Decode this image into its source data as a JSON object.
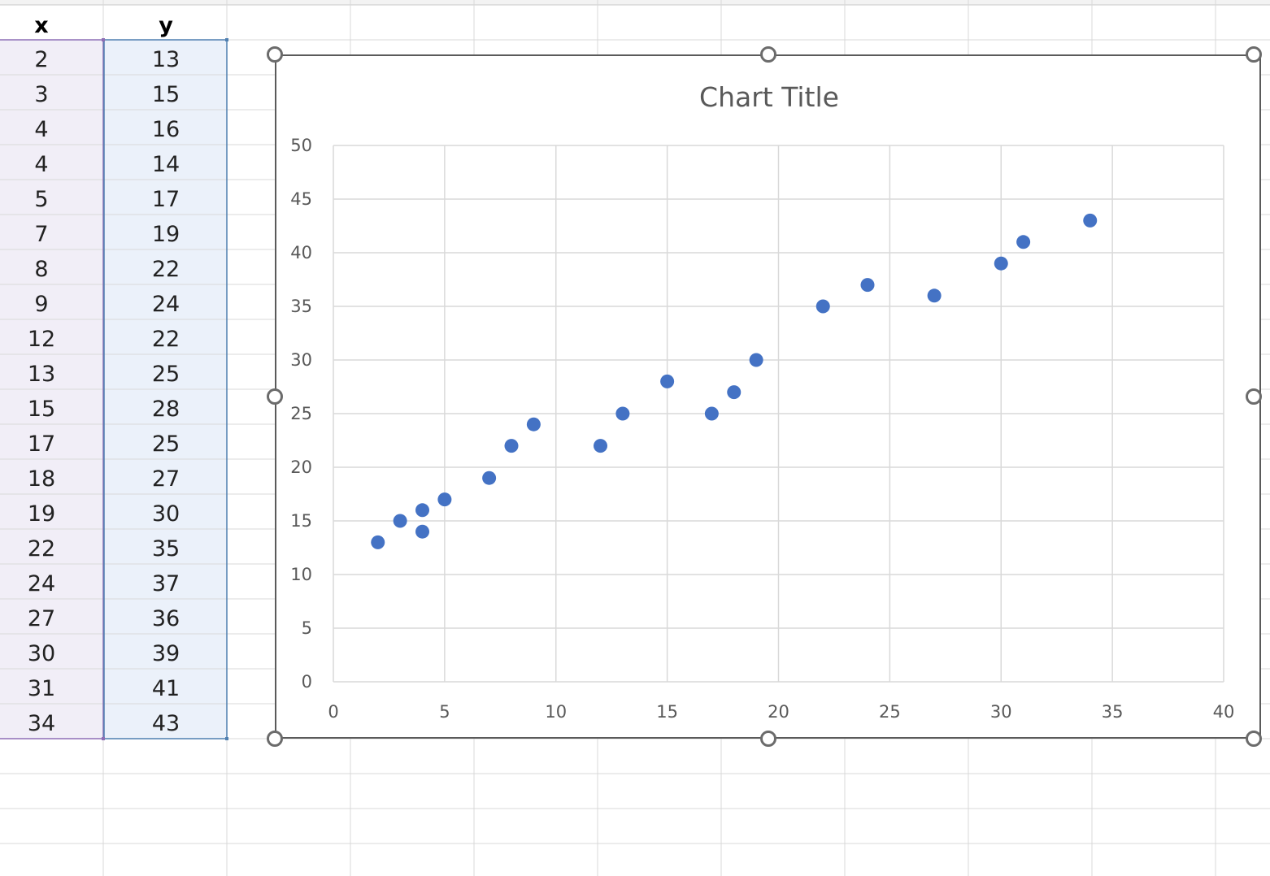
{
  "sheet": {
    "columns": [
      {
        "header": "x",
        "values": [
          2,
          3,
          4,
          4,
          5,
          7,
          8,
          9,
          12,
          13,
          15,
          17,
          18,
          19,
          22,
          24,
          27,
          30,
          31,
          34
        ]
      },
      {
        "header": "y",
        "values": [
          13,
          15,
          16,
          14,
          17,
          19,
          22,
          24,
          22,
          25,
          28,
          25,
          27,
          30,
          35,
          37,
          36,
          39,
          41,
          43
        ]
      }
    ],
    "colors": {
      "x_range_fill": "#f1eef7",
      "y_range_fill": "#ebf1fa",
      "x_range_border": "#8e6fb5",
      "y_range_border": "#4f7fb0",
      "gridline": "#d9d9d9"
    }
  },
  "chart_data": {
    "type": "scatter",
    "title": "Chart Title",
    "x": [
      2,
      3,
      4,
      4,
      5,
      7,
      8,
      9,
      12,
      13,
      15,
      17,
      18,
      19,
      22,
      24,
      27,
      30,
      31,
      34
    ],
    "y": [
      13,
      15,
      16,
      14,
      17,
      19,
      22,
      24,
      22,
      25,
      28,
      25,
      27,
      30,
      35,
      37,
      36,
      39,
      41,
      43
    ],
    "xlim": [
      0,
      40
    ],
    "ylim": [
      0,
      50
    ],
    "xticks": [
      0,
      5,
      10,
      15,
      20,
      25,
      30,
      35,
      40
    ],
    "yticks": [
      0,
      5,
      10,
      15,
      20,
      25,
      30,
      35,
      40,
      45,
      50
    ],
    "grid": true,
    "legend": "none",
    "marker_color": "#4472c4"
  }
}
